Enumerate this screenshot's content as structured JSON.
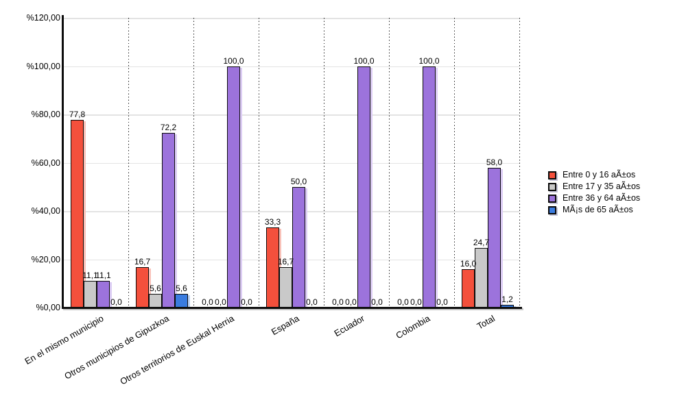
{
  "chart_data": {
    "type": "bar",
    "title": "",
    "categories": [
      "En el mismo municipio",
      "Otros municipios de Gipuzkoa",
      "Otros territorios de Euskal Herria",
      "España",
      "Ecuador",
      "Colombia",
      "Total"
    ],
    "series": [
      {
        "name": "Entre 0 y 16 aÃ±os",
        "color": "#f4503c",
        "shadow": "#f9c2b9",
        "values": [
          77.8,
          16.7,
          0.0,
          33.3,
          0.0,
          0.0,
          16.0
        ]
      },
      {
        "name": "Entre 17 y 35 aÃ±os",
        "color": "#c9c9c9",
        "shadow": "#e7e7e7",
        "values": [
          11.1,
          5.6,
          0.0,
          16.7,
          0.0,
          0.0,
          24.7
        ]
      },
      {
        "name": "Entre 36 y 64 aÃ±os",
        "color": "#9c73dc",
        "shadow": "#dccdf4",
        "values": [
          11.1,
          72.2,
          100.0,
          50.0,
          100.0,
          100.0,
          58.0
        ]
      },
      {
        "name": "MÃ¡s de 65 aÃ±os",
        "color": "#3a7ce0",
        "shadow": "#bdd2f3",
        "values": [
          0.0,
          5.6,
          0.0,
          0.0,
          0.0,
          0.0,
          1.2
        ]
      }
    ],
    "y_axis": {
      "ticks": [
        {
          "label": "%120,00",
          "value": 120
        },
        {
          "label": "%100,00",
          "value": 100
        },
        {
          "label": "%80,00",
          "value": 80
        },
        {
          "label": "%60,00",
          "value": 60
        },
        {
          "label": "%40,00",
          "value": 40
        },
        {
          "label": "%20,00",
          "value": 20
        },
        {
          "label": "%0,00",
          "value": 0
        }
      ],
      "ylim": [
        0,
        120
      ]
    },
    "value_label_decimal_separator": ",",
    "grid": true,
    "legend_position": "right",
    "axis_color": "#0d0d0d",
    "gridline_color": "#e3e3e3"
  }
}
